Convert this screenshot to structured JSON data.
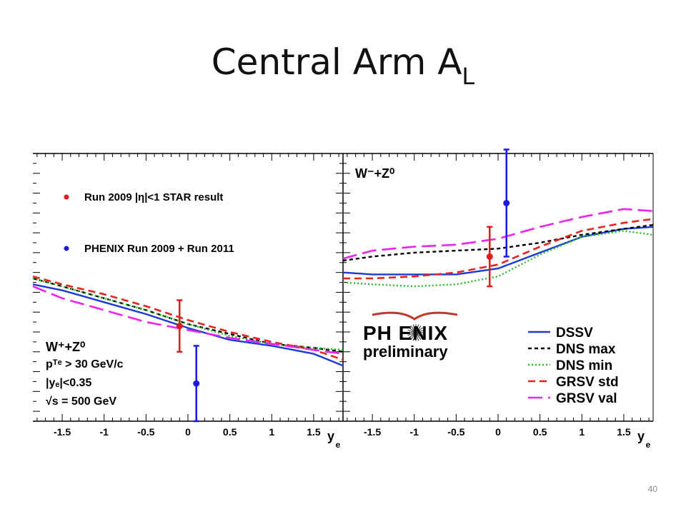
{
  "slide": {
    "title": "Central Arm A",
    "title_subscript": "L",
    "page_number": "40"
  },
  "chart_data": {
    "type": "line",
    "x_axis": {
      "label": "y",
      "label_subscript": "e",
      "range": [
        -1.85,
        1.85
      ],
      "ticks": [
        "-1.5",
        "-1",
        "-0.5",
        "0",
        "0.5",
        "1",
        "1.5"
      ]
    },
    "y_axis": {
      "range": [
        -0.75,
        0.6
      ],
      "tick_labels_shown": false
    },
    "logo": {
      "brand": "PH ENIX",
      "subtitle": "preliminary"
    },
    "panels": [
      {
        "id": "left",
        "process_label": "W⁺+Z⁰",
        "cuts": [
          "pᵀᵉ > 30 GeV/c",
          "|yₑ|<0.35",
          "√s = 500 GeV"
        ],
        "points_legend": [
          {
            "name": "Run 2009 |η|<1 STAR result",
            "color": "#e31a1c"
          },
          {
            "name": "PHENIX Run 2009 + Run 2011",
            "color": "#1a1ae6"
          }
        ],
        "points": [
          {
            "series": "Run 2009 |η|<1 STAR result",
            "x": -0.1,
            "y": -0.27,
            "err": 0.13,
            "color": "#e31a1c"
          },
          {
            "series": "PHENIX Run 2009 + Run 2011",
            "x": 0.1,
            "y": -0.56,
            "err": 0.19,
            "color": "#1a1ae6"
          }
        ],
        "curves": [
          {
            "name": "DSSV",
            "x": [
              -1.85,
              -1.5,
              -1,
              -0.5,
              0,
              0.5,
              1,
              1.5,
              1.85
            ],
            "y": [
              -0.06,
              -0.09,
              -0.15,
              -0.21,
              -0.28,
              -0.34,
              -0.37,
              -0.41,
              -0.47
            ]
          },
          {
            "name": "DNS max",
            "x": [
              -1.85,
              -1.5,
              -1,
              -0.5,
              0,
              0.5,
              1,
              1.5,
              1.85
            ],
            "y": [
              -0.03,
              -0.07,
              -0.13,
              -0.19,
              -0.26,
              -0.31,
              -0.36,
              -0.38,
              -0.4
            ]
          },
          {
            "name": "DNS min",
            "x": [
              -1.85,
              -1.5,
              -1,
              -0.5,
              0,
              0.5,
              1,
              1.5,
              1.85
            ],
            "y": [
              -0.03,
              -0.07,
              -0.13,
              -0.19,
              -0.26,
              -0.32,
              -0.36,
              -0.38,
              -0.39
            ]
          },
          {
            "name": "GRSV std",
            "x": [
              -1.85,
              -1.5,
              -1,
              -0.5,
              0,
              0.5,
              1,
              1.5,
              1.85
            ],
            "y": [
              -0.02,
              -0.06,
              -0.11,
              -0.17,
              -0.24,
              -0.3,
              -0.35,
              -0.39,
              -0.44
            ]
          },
          {
            "name": "GRSV val",
            "x": [
              -1.85,
              -1.5,
              -1,
              -0.5,
              0,
              0.5,
              1,
              1.5,
              1.85
            ],
            "y": [
              -0.07,
              -0.13,
              -0.19,
              -0.25,
              -0.29,
              -0.33,
              -0.36,
              -0.39,
              -0.41
            ]
          }
        ]
      },
      {
        "id": "right",
        "process_label": "W⁻+Z⁰",
        "points": [
          {
            "series": "Run 2009 |η|<1 STAR result",
            "x": -0.1,
            "y": 0.08,
            "err": 0.15,
            "color": "#e31a1c"
          },
          {
            "series": "PHENIX Run 2009 + Run 2011",
            "x": 0.1,
            "y": 0.35,
            "err": 0.27,
            "color": "#1a1ae6"
          }
        ],
        "curves": [
          {
            "name": "DSSV",
            "x": [
              -1.85,
              -1.5,
              -1,
              -0.5,
              0,
              0.5,
              1,
              1.5,
              1.85
            ],
            "y": [
              0.0,
              -0.01,
              -0.01,
              -0.01,
              0.02,
              0.1,
              0.18,
              0.22,
              0.23
            ]
          },
          {
            "name": "DNS max",
            "x": [
              -1.85,
              -1.5,
              -1,
              -0.5,
              0,
              0.5,
              1,
              1.5,
              1.85
            ],
            "y": [
              0.06,
              0.08,
              0.1,
              0.11,
              0.12,
              0.15,
              0.19,
              0.22,
              0.24
            ]
          },
          {
            "name": "DNS min",
            "x": [
              -1.85,
              -1.5,
              -1,
              -0.5,
              0,
              0.5,
              1,
              1.5,
              1.85
            ],
            "y": [
              -0.05,
              -0.06,
              -0.07,
              -0.06,
              -0.02,
              0.09,
              0.18,
              0.21,
              0.19
            ]
          },
          {
            "name": "GRSV std",
            "x": [
              -1.85,
              -1.5,
              -1,
              -0.5,
              0,
              0.5,
              1,
              1.5,
              1.85
            ],
            "y": [
              -0.03,
              -0.03,
              -0.02,
              0.0,
              0.04,
              0.13,
              0.21,
              0.25,
              0.27
            ]
          },
          {
            "name": "GRSV val",
            "x": [
              -1.85,
              -1.5,
              -1,
              -0.5,
              0,
              0.5,
              1,
              1.5,
              1.85
            ],
            "y": [
              0.07,
              0.11,
              0.13,
              0.14,
              0.17,
              0.23,
              0.28,
              0.32,
              0.31
            ]
          }
        ]
      }
    ],
    "curve_legend": [
      {
        "name": "DSSV",
        "color": "#1a3ad6",
        "style": "solid"
      },
      {
        "name": "DNS max",
        "color": "#000000",
        "style": "dashed"
      },
      {
        "name": "DNS min",
        "color": "#22bb22",
        "style": "dotted"
      },
      {
        "name": "GRSV std",
        "color": "#e8231f",
        "style": "long-dashed"
      },
      {
        "name": "GRSV val",
        "color": "#ee22ee",
        "style": "long-dash"
      }
    ]
  }
}
